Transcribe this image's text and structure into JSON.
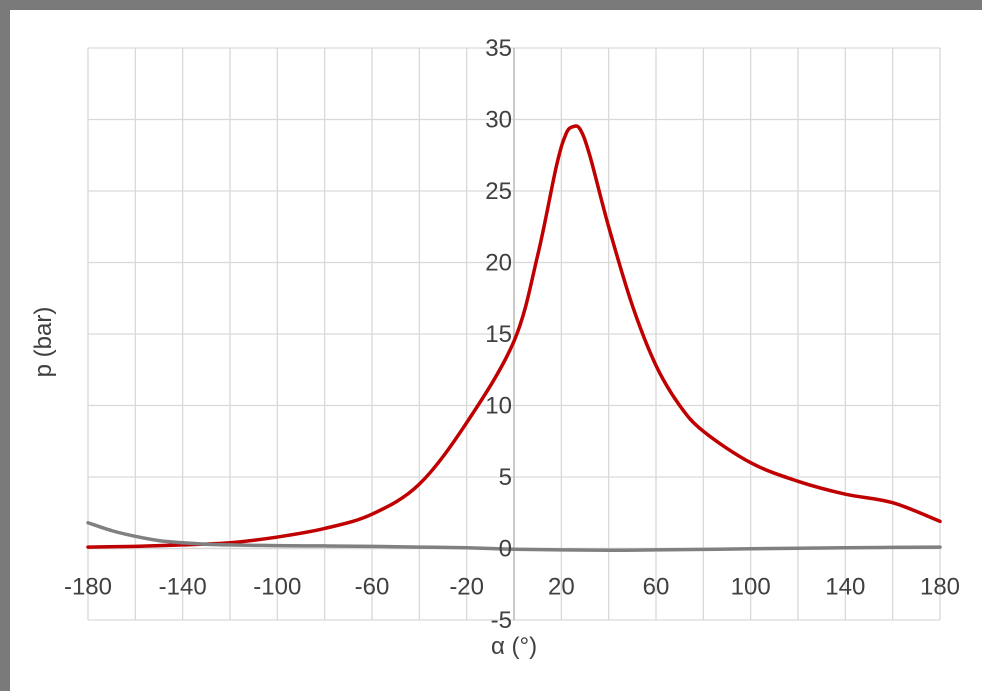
{
  "chart_data": {
    "type": "line",
    "title": "",
    "xlabel": "α (°)",
    "ylabel": "p (bar)",
    "xlim": [
      -180,
      180
    ],
    "ylim": [
      -5,
      35
    ],
    "x_ticks": [
      -180,
      -140,
      -100,
      -60,
      -20,
      20,
      60,
      100,
      140,
      180
    ],
    "x_tick_labels": [
      "-180",
      "-140",
      "-100",
      "-60",
      "-20",
      "20",
      "60",
      "100",
      "140",
      "180"
    ],
    "y_ticks": [
      -5,
      0,
      5,
      10,
      15,
      20,
      25,
      30,
      35
    ],
    "y_tick_labels": [
      "-5",
      "0",
      "5",
      "10",
      "15",
      "20",
      "25",
      "30",
      "35"
    ],
    "grid": true,
    "series": [
      {
        "color": "#c00000",
        "x": [
          -180,
          -160,
          -140,
          -120,
          -100,
          -80,
          -60,
          -40,
          -20,
          0,
          10,
          18,
          22,
          25,
          28,
          32,
          40,
          50,
          60,
          70,
          80,
          100,
          120,
          140,
          160,
          180
        ],
        "y": [
          0.1,
          0.15,
          0.25,
          0.4,
          0.8,
          1.4,
          2.4,
          4.5,
          8.8,
          14.5,
          20.5,
          26.8,
          29.0,
          29.5,
          29.3,
          27.5,
          22.5,
          17.0,
          12.8,
          10.0,
          8.2,
          6.0,
          4.7,
          3.8,
          3.2,
          1.9
        ]
      },
      {
        "color": "#808080",
        "x": [
          -180,
          -170,
          -160,
          -150,
          -140,
          -130,
          -120,
          -100,
          -80,
          -60,
          -40,
          -20,
          0,
          20,
          40,
          60,
          100,
          140,
          180
        ],
        "y": [
          1.8,
          1.25,
          0.85,
          0.55,
          0.4,
          0.3,
          0.25,
          0.2,
          0.18,
          0.15,
          0.1,
          0.05,
          -0.05,
          -0.1,
          -0.12,
          -0.1,
          -0.02,
          0.05,
          0.1
        ]
      }
    ]
  }
}
